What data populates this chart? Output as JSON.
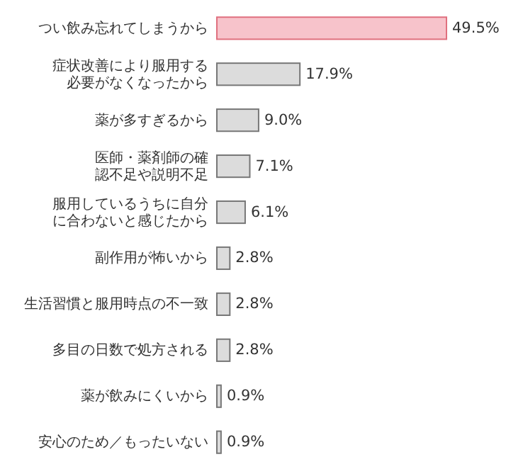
{
  "chart_data": {
    "type": "bar",
    "orientation": "horizontal",
    "categories": [
      "つい飲み忘れてしまうから",
      "症状改善により服用する必要がなくなったから",
      "薬が多すぎるから",
      "医師・薬剤師の確認不足や説明不足",
      "服用しているうちに自分に合わないと感じたから",
      "副作用が怖いから",
      "生活習慣と服用時点の不一致",
      "多目の日数で処方される",
      "薬が飲みにくいから",
      "安心のため／もったいない"
    ],
    "values": [
      49.5,
      17.9,
      9.0,
      7.1,
      6.1,
      2.8,
      2.8,
      2.8,
      0.9,
      0.9
    ],
    "value_labels": [
      "49.5%",
      "17.9%",
      "9.0%",
      "7.1%",
      "6.1%",
      "2.8%",
      "2.8%",
      "2.8%",
      "0.9%",
      "0.9%"
    ],
    "colors": [
      "#f7c3cb",
      "#dcdcdc",
      "#dcdcdc",
      "#dcdcdc",
      "#dcdcdc",
      "#dcdcdc",
      "#dcdcdc",
      "#dcdcdc",
      "#dcdcdc",
      "#dcdcdc"
    ]
  }
}
